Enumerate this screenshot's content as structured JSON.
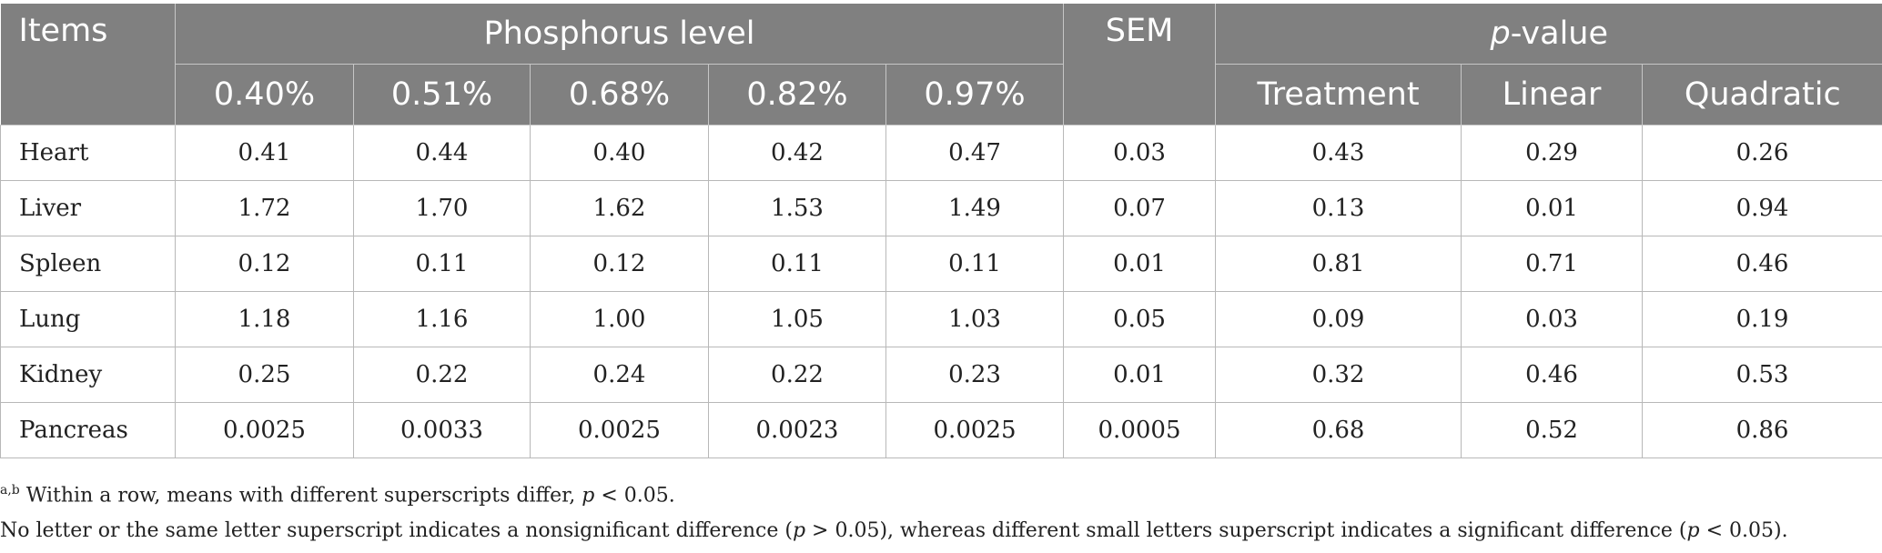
{
  "table": {
    "col_items": "Items",
    "group_phosphorus": "Phosphorus level",
    "col_sem": "SEM",
    "pvalue_p": "p",
    "pvalue_rest": "-value",
    "levels": [
      "0.40%",
      "0.51%",
      "0.68%",
      "0.82%",
      "0.97%"
    ],
    "pvalue_cols": [
      "Treatment",
      "Linear",
      "Quadratic"
    ],
    "rows": [
      {
        "item": "Heart",
        "values": [
          "0.41",
          "0.44",
          "0.40",
          "0.42",
          "0.47"
        ],
        "sem": "0.03",
        "p": [
          "0.43",
          "0.29",
          "0.26"
        ]
      },
      {
        "item": "Liver",
        "values": [
          "1.72",
          "1.70",
          "1.62",
          "1.53",
          "1.49"
        ],
        "sem": "0.07",
        "p": [
          "0.13",
          "0.01",
          "0.94"
        ]
      },
      {
        "item": "Spleen",
        "values": [
          "0.12",
          "0.11",
          "0.12",
          "0.11",
          "0.11"
        ],
        "sem": "0.01",
        "p": [
          "0.81",
          "0.71",
          "0.46"
        ]
      },
      {
        "item": "Lung",
        "values": [
          "1.18",
          "1.16",
          "1.00",
          "1.05",
          "1.03"
        ],
        "sem": "0.05",
        "p": [
          "0.09",
          "0.03",
          "0.19"
        ]
      },
      {
        "item": "Kidney",
        "values": [
          "0.25",
          "0.22",
          "0.24",
          "0.22",
          "0.23"
        ],
        "sem": "0.01",
        "p": [
          "0.32",
          "0.46",
          "0.53"
        ]
      },
      {
        "item": "Pancreas",
        "values": [
          "0.0025",
          "0.0033",
          "0.0025",
          "0.0023",
          "0.0025"
        ],
        "sem": "0.0005",
        "p": [
          "0.68",
          "0.52",
          "0.86"
        ]
      }
    ]
  },
  "footnotes": {
    "note1_sup": "a,b",
    "note1_text": " Within a row, means with different superscripts differ, ",
    "note1_p": "p",
    "note1_tail": " < 0.05.",
    "note2_a": "No letter or the same letter superscript indicates a nonsignificant difference (",
    "note2_p1": "p",
    "note2_b": " > 0.05), whereas different small letters superscript indicates a significant difference (",
    "note2_p2": "p",
    "note2_c": " < 0.05)."
  }
}
